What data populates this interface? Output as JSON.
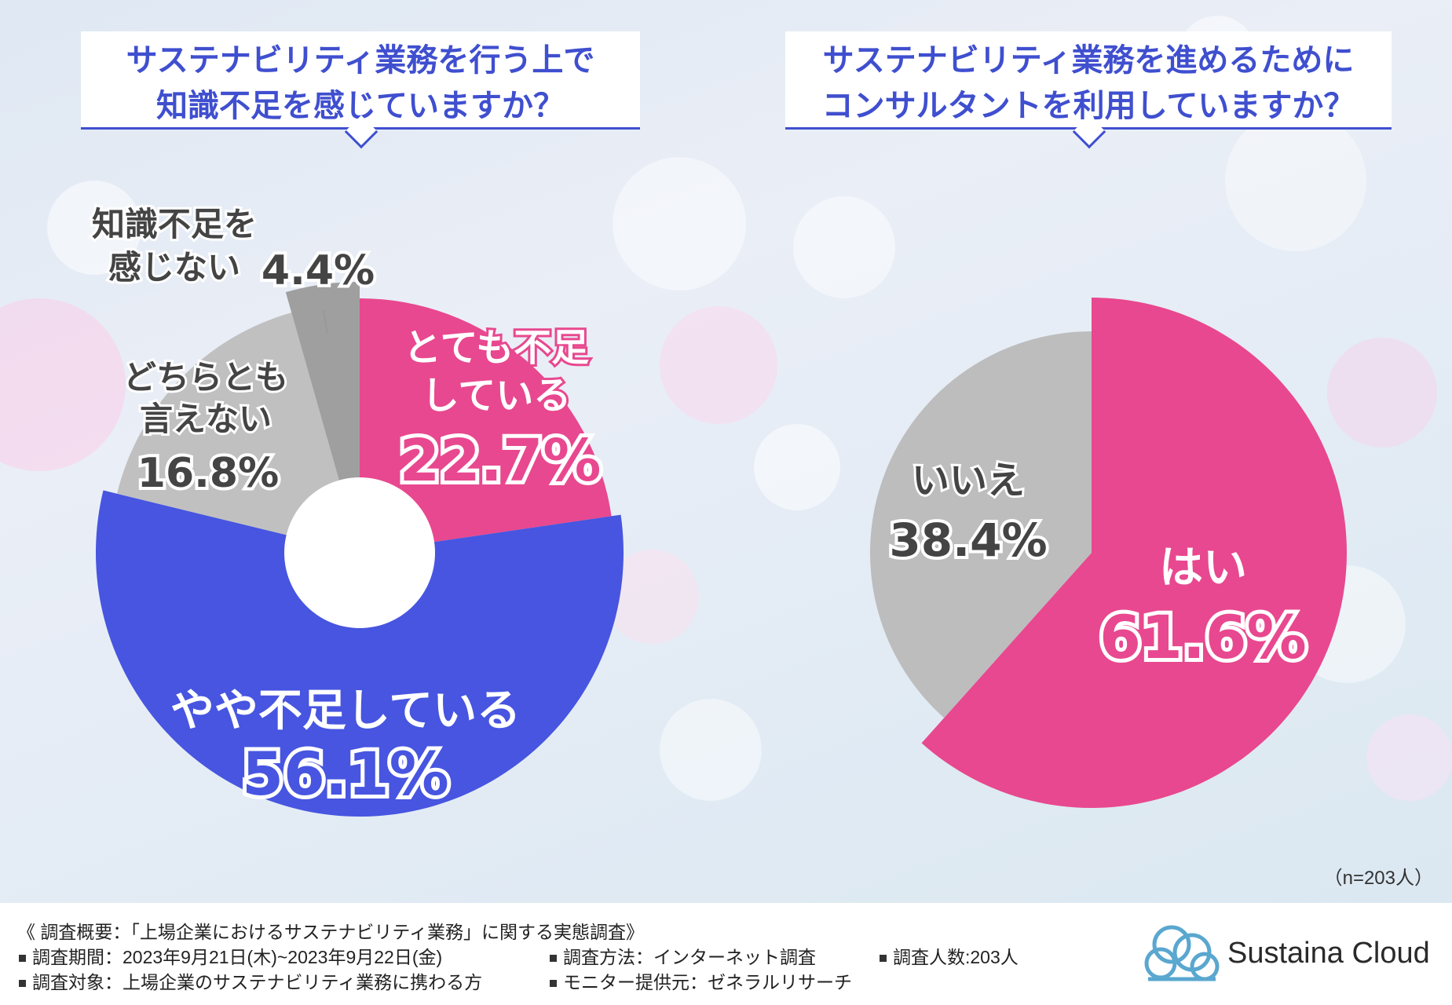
{
  "questions": {
    "left": [
      "サステナビリティ業務を行う上で",
      "知識不足を感じていますか？"
    ],
    "right": [
      "サステナビリティ業務を進めるために",
      "コンサルタントを利用していますか？"
    ]
  },
  "chart_data": [
    {
      "type": "pie",
      "title": "サステナビリティ業務を行う上で知識不足を感じていますか？",
      "categories": [
        "とても不足している",
        "やや不足している",
        "どちらとも言えない",
        "知識不足を感じない"
      ],
      "values": [
        22.7,
        56.1,
        16.8,
        4.4
      ],
      "unit": "%",
      "colors": [
        "#e8488f",
        "#4755e0",
        "#c0c0c0",
        "#9f9f9f"
      ],
      "donut": true
    },
    {
      "type": "pie",
      "title": "サステナビリティ業務を進めるためにコンサルタントを利用していますか？",
      "categories": [
        "はい",
        "いいえ"
      ],
      "values": [
        61.6,
        38.4
      ],
      "unit": "%",
      "colors": [
        "#e8488f",
        "#bdbdbd"
      ],
      "donut": false
    }
  ],
  "labels": {
    "left": {
      "very": {
        "lines": [
          "とても不足",
          "している"
        ],
        "pct": "22.7%"
      },
      "some": {
        "lines": [
          "やや不足している"
        ],
        "pct": "56.1%"
      },
      "neither": {
        "lines": [
          "どちらとも",
          "言えない"
        ],
        "pct": "16.8%"
      },
      "not": {
        "lines": [
          "知識不足を",
          "感じない"
        ],
        "pct": "4.4%"
      }
    },
    "right": {
      "yes": {
        "lines": [
          "はい"
        ],
        "pct": "61.6%"
      },
      "no": {
        "lines": [
          "いいえ"
        ],
        "pct": "38.4%"
      }
    }
  },
  "note": "（n=203人）",
  "footer": {
    "heading": "《 調査概要：「上場企業におけるサステナビリティ業務」に関する実態調査》",
    "period": "調査期間：2023年9月21日(木)~2023年9月22日(金)",
    "method": "調査方法：インターネット調査",
    "count": "調査人数:203人",
    "target": "調査対象：上場企業のサステナビリティ業務に携わる方",
    "provider": "モニター提供元：ゼネラルリサーチ"
  },
  "logo": {
    "text": "Sustaina Cloud",
    "icon": "cloud-icon",
    "color": "#5aa7cf"
  }
}
